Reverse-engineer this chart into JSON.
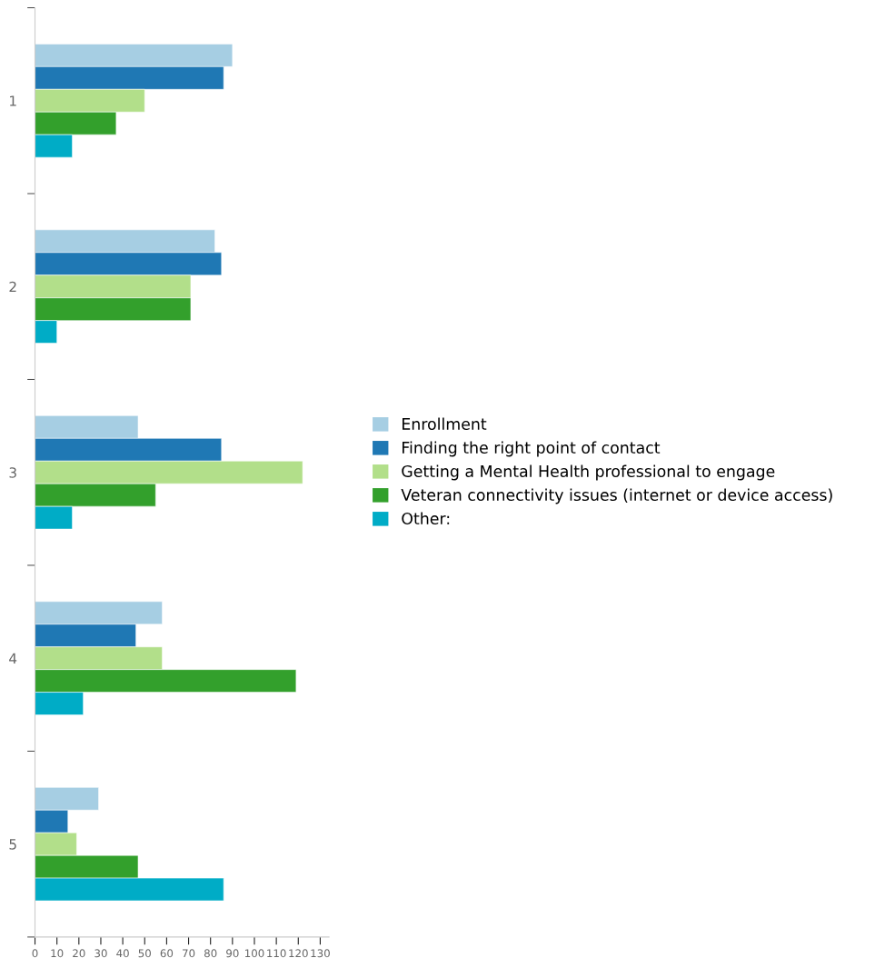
{
  "chart_data": {
    "type": "bar",
    "orientation": "horizontal",
    "categories": [
      "1",
      "2",
      "3",
      "4",
      "5"
    ],
    "series": [
      {
        "name": "Enrollment",
        "color": "#a6cee3",
        "values": [
          90,
          82,
          47,
          58,
          29
        ]
      },
      {
        "name": "Finding the right point of contact",
        "color": "#1f78b4",
        "values": [
          86,
          85,
          85,
          46,
          15
        ]
      },
      {
        "name": "Getting a Mental Health professional to engage",
        "color": "#b2df8a",
        "values": [
          50,
          71,
          122,
          58,
          19
        ]
      },
      {
        "name": "Veteran connectivity issues (internet or device access)",
        "color": "#33a02c",
        "values": [
          37,
          71,
          55,
          119,
          47
        ]
      },
      {
        "name": "Other:",
        "color": "#00acc6",
        "values": [
          17,
          10,
          17,
          22,
          86
        ]
      }
    ],
    "xlim": [
      0,
      134
    ],
    "xticks": [
      0,
      10,
      20,
      30,
      40,
      50,
      60,
      70,
      80,
      90,
      100,
      110,
      120,
      130
    ],
    "grid": false,
    "legend": "right"
  }
}
